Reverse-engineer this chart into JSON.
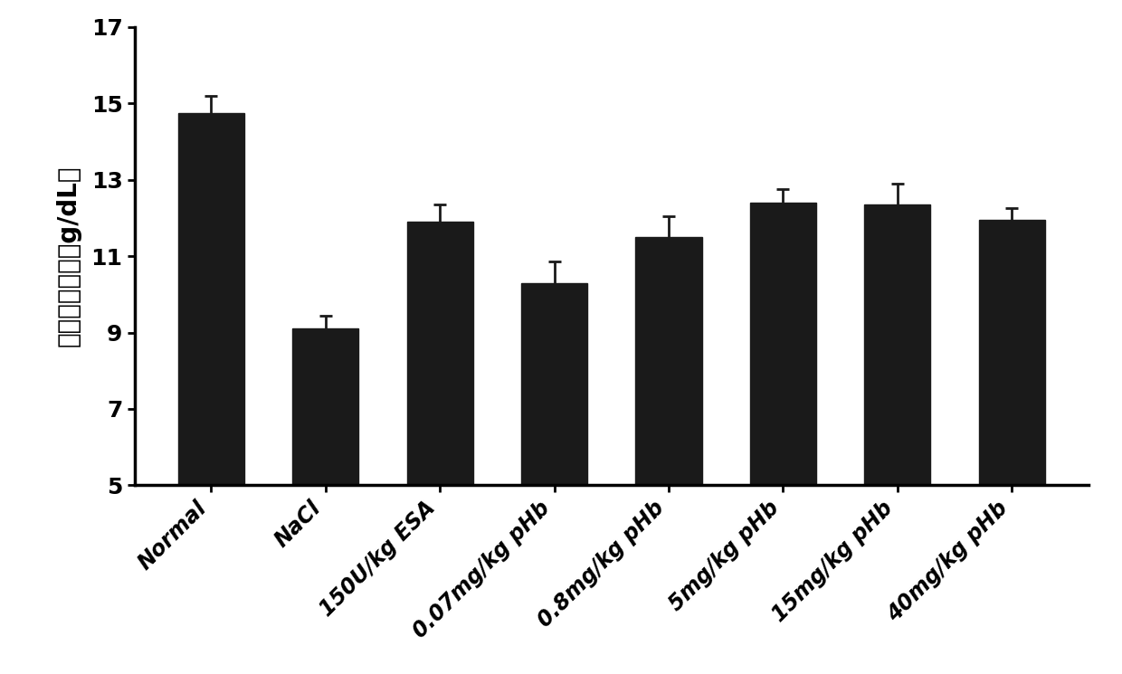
{
  "categories": [
    "Normal",
    "NaCl",
    "150U/kg ESA",
    "0.07mg/kg pHb",
    "0.8mg/kg pHb",
    "5mg/kg pHb",
    "15mg/kg pHb",
    "40mg/kg pHb"
  ],
  "values": [
    14.75,
    9.1,
    11.9,
    10.3,
    11.5,
    12.4,
    12.35,
    11.95
  ],
  "errors": [
    0.45,
    0.35,
    0.45,
    0.55,
    0.55,
    0.35,
    0.55,
    0.3
  ],
  "bar_color": "#1a1a1a",
  "ylabel": "血红蛋白浓度（g/dL）",
  "ylim": [
    5,
    17
  ],
  "yticks": [
    5,
    7,
    9,
    11,
    13,
    15,
    17
  ],
  "background_color": "#ffffff",
  "ylabel_fontsize": 20,
  "ytick_fontsize": 18,
  "xtick_fontsize": 17,
  "bar_width": 0.58,
  "capsize": 5
}
